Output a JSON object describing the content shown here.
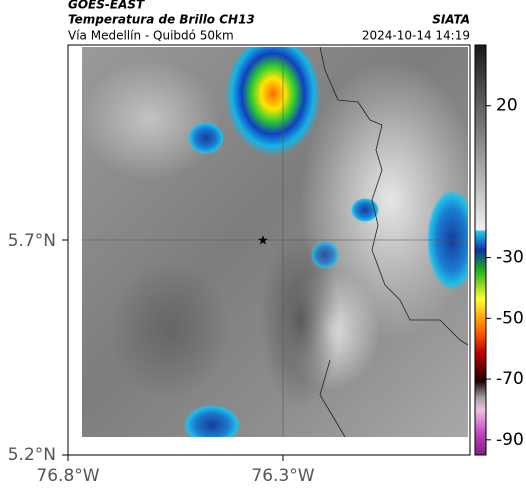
{
  "header": {
    "satellite": "GOES-EAST",
    "product": "Temperatura de Brillo CH13",
    "source": "SIATA",
    "region": "Vía Medellín - Quibdó 50km",
    "timestamp": "2024-10-14 14:19"
  },
  "axes": {
    "lat_labels": [
      "5.7°N",
      "5.2°N"
    ],
    "lon_labels": [
      "76.8°W",
      "76.3°W"
    ]
  },
  "colorbar": {
    "lim": [
      40,
      -95
    ],
    "ticks": [
      20,
      -30,
      -50,
      -70,
      -90
    ]
  }
}
